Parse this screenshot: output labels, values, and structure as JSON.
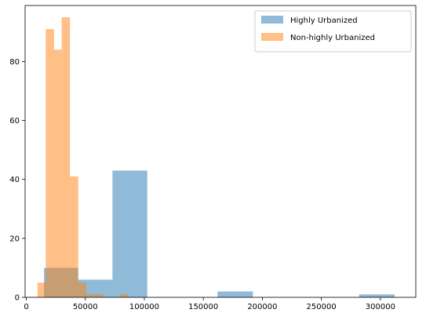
{
  "chart_data": {
    "type": "bar",
    "xlim": [
      -1000,
      330000
    ],
    "ylim": [
      0,
      99
    ],
    "x_ticks": [
      0,
      50000,
      100000,
      150000,
      200000,
      250000,
      300000
    ],
    "x_tick_labels": [
      "0",
      "50000",
      "100000",
      "150000",
      "200000",
      "250000",
      "300000"
    ],
    "y_ticks": [
      0,
      20,
      40,
      60,
      80
    ],
    "y_tick_labels": [
      "0",
      "20",
      "40",
      "60",
      "80"
    ],
    "grid": false,
    "legend_position": "top-right",
    "series": [
      {
        "name": "Highly Urbanized",
        "color": "#1f77b4",
        "alpha": 0.5,
        "bins": [
          [
            15000,
            44000,
            10
          ],
          [
            44000,
            73000,
            6
          ],
          [
            73000,
            102500,
            43
          ],
          [
            102500,
            132000,
            0
          ],
          [
            132000,
            162000,
            0
          ],
          [
            162000,
            192000,
            2
          ],
          [
            192000,
            222000,
            0
          ],
          [
            222000,
            252000,
            0
          ],
          [
            252000,
            282000,
            0
          ],
          [
            282000,
            312000,
            1
          ]
        ]
      },
      {
        "name": "Non-highly Urbanized",
        "color": "#ff7f0e",
        "alpha": 0.5,
        "bins": [
          [
            9500,
            16500,
            5
          ],
          [
            16500,
            23500,
            91
          ],
          [
            23500,
            30000,
            84
          ],
          [
            30000,
            37000,
            95
          ],
          [
            37000,
            44000,
            41
          ],
          [
            44000,
            51000,
            5
          ],
          [
            51000,
            58000,
            1
          ],
          [
            58000,
            65000,
            1
          ],
          [
            65000,
            72000,
            0
          ],
          [
            72000,
            79000,
            0
          ],
          [
            79000,
            86000,
            1
          ]
        ]
      }
    ]
  }
}
